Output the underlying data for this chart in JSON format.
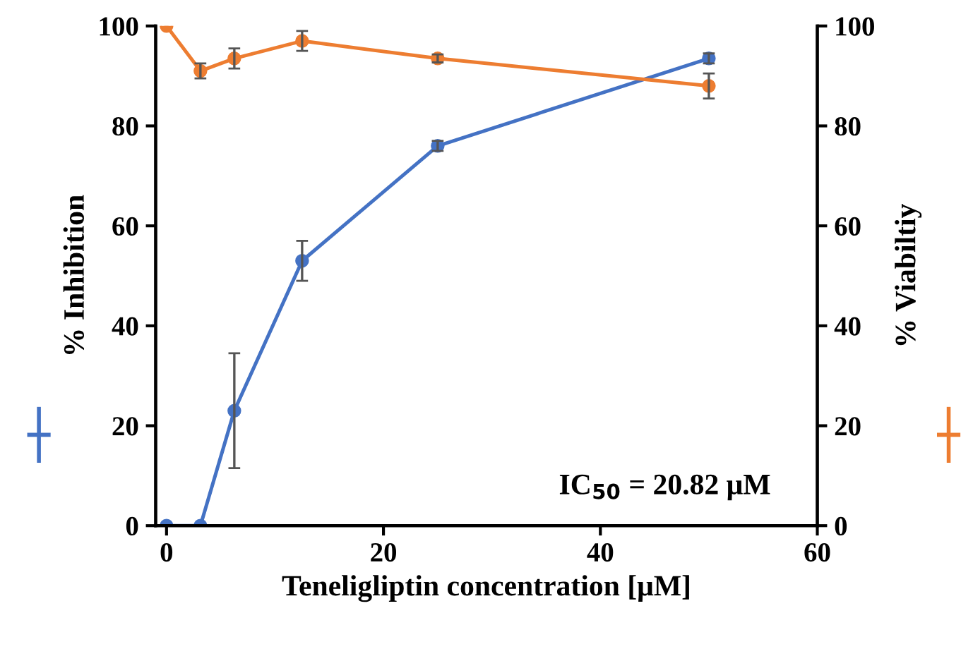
{
  "chart_data": {
    "type": "line",
    "xlabel": "Teneligliptin concentration [μM]",
    "ylabel": "% Inhibition",
    "y2label": "% Viabiltiy",
    "x": [
      0,
      3.125,
      6.25,
      12.5,
      25,
      50
    ],
    "series": [
      {
        "color": "#4472c4",
        "values": [
          0,
          0,
          23,
          53,
          76,
          93.5
        ],
        "errors": [
          null,
          null,
          11.5,
          4,
          1,
          1
        ]
      },
      {
        "color": "#ed7d31",
        "axis": "y2",
        "values": [
          100,
          91,
          93.5,
          97,
          93.5,
          88
        ],
        "errors": [
          null,
          1.5,
          2,
          2,
          0.8,
          2.5
        ]
      }
    ],
    "xlim": [
      -1,
      60
    ],
    "xticks": [
      0,
      20,
      40,
      60
    ],
    "ylim": [
      0,
      100
    ],
    "yticks": [
      0,
      20,
      40,
      60,
      80,
      100
    ],
    "y2lim": [
      0,
      100
    ],
    "y2ticks": [
      0,
      20,
      40,
      60,
      80,
      100
    ],
    "marker": "circle",
    "line_style": "solid",
    "grid": false,
    "legend": false,
    "annotations": [
      "IC$_{50}$ = 20.82 μM"
    ]
  }
}
